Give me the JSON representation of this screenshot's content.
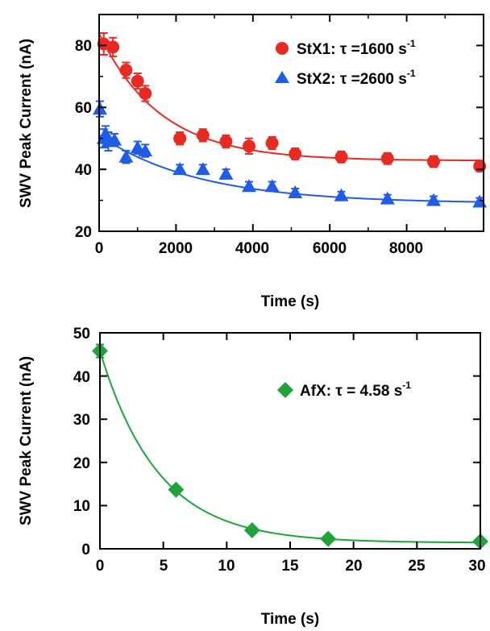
{
  "chart_data": [
    {
      "type": "scatter",
      "xlabel": "Time (s)",
      "ylabel": "SWV Peak Current (nA)",
      "xlim": [
        0,
        10000
      ],
      "ylim": [
        20,
        90
      ],
      "x_ticks": [
        "0",
        "2000",
        "4000",
        "6000",
        "8000"
      ],
      "y_ticks": [
        "20",
        "40",
        "60",
        "80"
      ],
      "legend_position": "top-right",
      "series": [
        {
          "name": "StX1: τ =1600 s",
          "name_superscript": "-1",
          "marker": "circle",
          "color": "#e82a23",
          "x": [
            120,
            360,
            700,
            1000,
            1200,
            2100,
            2700,
            3300,
            3900,
            4500,
            5100,
            6300,
            7500,
            8700,
            9900
          ],
          "y": [
            80.5,
            79.5,
            72,
            68.5,
            64.5,
            50,
            51,
            49,
            47.5,
            48.5,
            45,
            44,
            43.5,
            42.5,
            41
          ],
          "err": [
            3.5,
            3,
            2.5,
            2.5,
            2.5,
            2,
            2,
            2,
            2.5,
            2,
            1.8,
            1.8,
            1.8,
            1.8,
            1.5
          ],
          "fit": {
            "y0": 42.8,
            "A": 41.0,
            "tau": 1600
          }
        },
        {
          "name": "StX2: τ =2600 s",
          "name_superscript": "-1",
          "marker": "triangle",
          "color": "#1f5de6",
          "x": [
            20,
            120,
            170,
            240,
            400,
            700,
            1000,
            1200,
            2100,
            2700,
            3300,
            3900,
            4500,
            5100,
            6300,
            7500,
            8700,
            9900
          ],
          "y": [
            59.5,
            50,
            51.5,
            49,
            49.5,
            44,
            47,
            46,
            40,
            40,
            38.5,
            34.5,
            34.5,
            32.5,
            31.5,
            30.5,
            30,
            29.5
          ],
          "err": [
            2.5,
            3,
            2.5,
            3,
            2,
            2,
            2,
            2,
            1.5,
            1.5,
            1.5,
            1.5,
            1.5,
            1.3,
            1.3,
            1.3,
            1.3,
            1.3
          ],
          "fit": {
            "y0": 29.0,
            "A": 22.0,
            "tau": 2600
          }
        }
      ]
    },
    {
      "type": "scatter",
      "xlabel": "Time (s)",
      "ylabel": "SWV Peak Current (nA)",
      "xlim": [
        0,
        30
      ],
      "ylim": [
        0,
        50
      ],
      "x_ticks": [
        "0",
        "5",
        "10",
        "15",
        "20",
        "25",
        "30"
      ],
      "y_ticks": [
        "0",
        "10",
        "20",
        "30",
        "40",
        "50"
      ],
      "legend_position": "center-right",
      "series": [
        {
          "name": "AfX: τ = 4.58 s",
          "name_superscript": "-1",
          "marker": "diamond",
          "color": "#1fa33a",
          "x": [
            0,
            6,
            12,
            18,
            30
          ],
          "y": [
            45.8,
            13.7,
            4.3,
            2.3,
            1.7
          ],
          "err": [
            1.5,
            0.8,
            0.6,
            0.5,
            0.5
          ],
          "fit": {
            "y0": 1.4,
            "A": 44.4,
            "tau": 4.58
          }
        }
      ]
    }
  ]
}
